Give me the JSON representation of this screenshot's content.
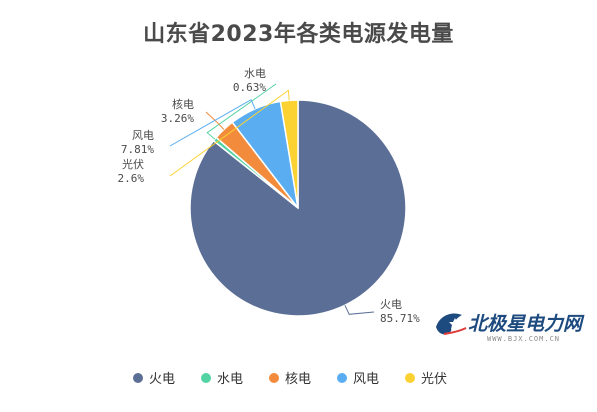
{
  "title": "山东省2023年各类电源发电量",
  "chart_data": {
    "type": "pie",
    "title": "山东省2023年各类电源发电量",
    "slices": [
      {
        "name": "火电",
        "value": 85.71,
        "label": "85.71%",
        "color": "#5b6e96"
      },
      {
        "name": "水电",
        "value": 0.63,
        "label": "0.63%",
        "color": "#53d3a3"
      },
      {
        "name": "核电",
        "value": 3.26,
        "label": "3.26%",
        "color": "#f28c3c"
      },
      {
        "name": "风电",
        "value": 7.81,
        "label": "7.81%",
        "color": "#59adf0"
      },
      {
        "name": "光伏",
        "value": 2.6,
        "label": "2.6%",
        "color": "#fcd232"
      }
    ],
    "start_angle": "12 o'clock",
    "direction": "clockwise",
    "legend_position": "bottom"
  },
  "watermark": {
    "brand": "北极星电力网",
    "url": "WWW.BJX.COM.CN"
  }
}
